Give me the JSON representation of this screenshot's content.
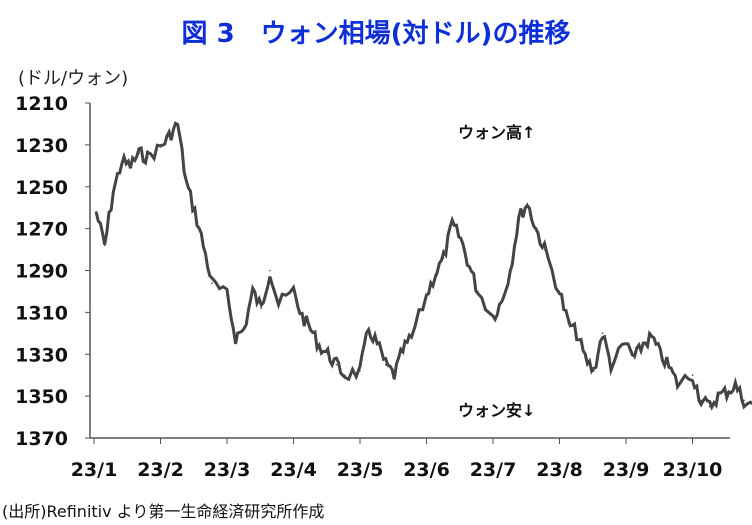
{
  "header": {
    "title": "図 3　ウォン相場(対ドル)の推移",
    "unit": "(ドル/ウォン)",
    "source": "(出所)Refinitiv より第一生命経済研究所作成"
  },
  "annotations": {
    "won_up": "ウォン高↑",
    "won_down": "ウォン安↓"
  },
  "colors": {
    "title": "#0f2fd6",
    "series": "#444444",
    "axis": "#555555"
  },
  "chart_data": {
    "type": "line",
    "title": "図 3　ウォン相場(対ドル)の推移",
    "ylabel": "(ドル/ウォン)",
    "y_inverted": true,
    "ylim": [
      1210,
      1370
    ],
    "y_ticks": [
      1210,
      1230,
      1250,
      1270,
      1290,
      1310,
      1330,
      1350,
      1370
    ],
    "x_ticks": [
      "23/1",
      "23/2",
      "23/3",
      "23/4",
      "23/5",
      "23/6",
      "23/7",
      "23/8",
      "23/9",
      "23/10"
    ],
    "grid": false,
    "x": [
      "23/1/2",
      "23/1/6",
      "23/1/10",
      "23/1/14",
      "23/1/18",
      "23/1/22",
      "23/1/26",
      "23/2/1",
      "23/2/5",
      "23/2/9",
      "23/2/13",
      "23/2/17",
      "23/2/21",
      "23/2/25",
      "23/3/1",
      "23/3/5",
      "23/3/9",
      "23/3/13",
      "23/3/17",
      "23/3/21",
      "23/3/25",
      "23/4/1",
      "23/4/5",
      "23/4/9",
      "23/4/13",
      "23/4/17",
      "23/4/21",
      "23/4/25",
      "23/5/1",
      "23/5/5",
      "23/5/9",
      "23/5/13",
      "23/5/17",
      "23/5/21",
      "23/5/25",
      "23/6/1",
      "23/6/5",
      "23/6/9",
      "23/6/13",
      "23/6/17",
      "23/6/21",
      "23/6/25",
      "23/7/1",
      "23/7/5",
      "23/7/9",
      "23/7/13",
      "23/7/17",
      "23/7/21",
      "23/7/25",
      "23/8/1",
      "23/8/5",
      "23/8/9",
      "23/8/13",
      "23/8/17",
      "23/8/21",
      "23/8/25",
      "23/9/1",
      "23/9/5",
      "23/9/9",
      "23/9/13",
      "23/9/17",
      "23/9/21",
      "23/9/25",
      "23/10/1",
      "23/10/5",
      "23/10/9",
      "23/10/13",
      "23/10/17",
      "23/10/21",
      "23/10/25",
      "23/10/31"
    ],
    "series": [
      {
        "values": [
          1262,
          1278,
          1252,
          1238,
          1240,
          1234,
          1236,
          1231,
          1226,
          1220,
          1248,
          1262,
          1278,
          1296,
          1302,
          1322,
          1318,
          1300,
          1308,
          1290,
          1306,
          1300,
          1312,
          1318,
          1326,
          1330,
          1335,
          1340,
          1338,
          1318,
          1325,
          1335,
          1340,
          1328,
          1322,
          1302,
          1292,
          1284,
          1268,
          1275,
          1288,
          1300,
          1312,
          1305,
          1290,
          1265,
          1258,
          1270,
          1280,
          1300,
          1315,
          1320,
          1332,
          1338,
          1320,
          1335,
          1325,
          1332,
          1325,
          1322,
          1330,
          1336,
          1344,
          1340,
          1352,
          1355,
          1350,
          1348,
          1345,
          1352,
          1356
        ]
      }
    ]
  }
}
